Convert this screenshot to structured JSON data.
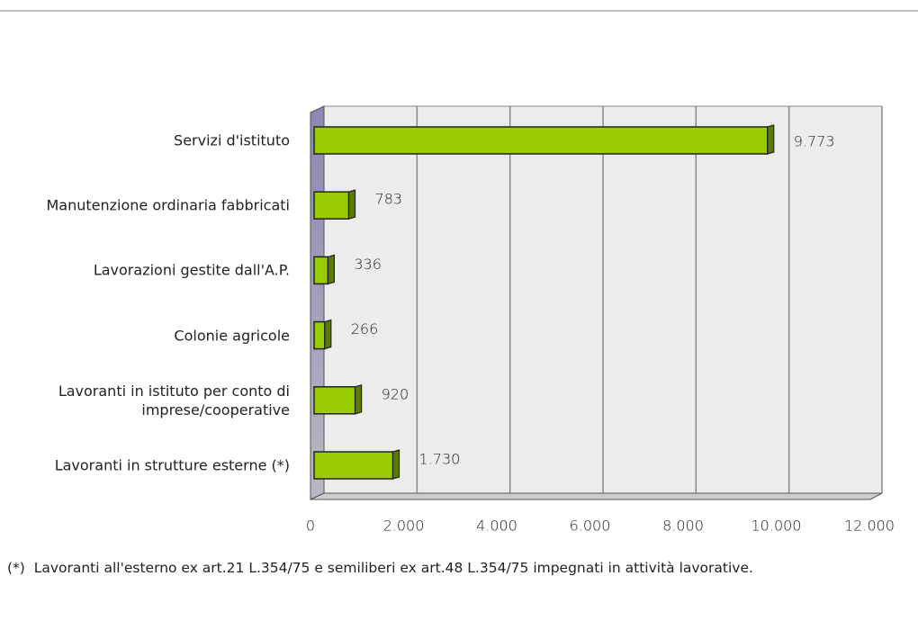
{
  "chart_data": {
    "type": "bar",
    "orientation": "horizontal",
    "categories": [
      "Servizi d'istituto",
      "Manutenzione ordinaria fabbricati",
      "Lavorazioni gestite dall'A.P.",
      "Colonie agricole",
      "Lavoranti in istituto per conto di\nimprese/cooperative",
      "Lavoranti in strutture esterne (*)"
    ],
    "values": [
      9773,
      783,
      336,
      266,
      920,
      1730
    ],
    "value_labels": [
      "9.773",
      "783",
      "336",
      "266",
      "920",
      "1.730"
    ],
    "color": "#99cc00",
    "xlim": [
      0,
      12000
    ],
    "xticks": [
      0,
      {
        "value": 2000,
        "label": "2.000"
      },
      {
        "value": 4000,
        "label": "4.000"
      },
      {
        "value": 6000,
        "label": "6.000"
      },
      {
        "value": 8000,
        "label": "8.000"
      },
      {
        "value": 10000,
        "label": "10.000"
      },
      {
        "value": 12000,
        "label": "12.000"
      }
    ],
    "grid": true,
    "note": "(*)  Lavoranti all'esterno ex art.21 L.354/75 e semiliberi ex art.48 L.354/75 impegnati in attività lavorative."
  }
}
